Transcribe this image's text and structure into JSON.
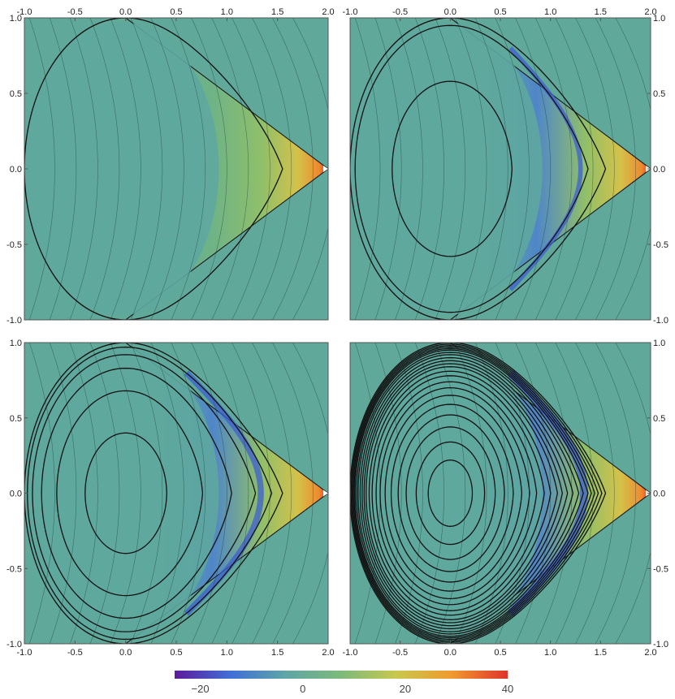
{
  "chart_data": [
    {
      "type": "contour",
      "panel": "top-left",
      "x_ticks": [
        "-1.0",
        "-0.5",
        "0.0",
        "0.5",
        "1.0",
        "1.5",
        "2.0"
      ],
      "y_ticks": [
        "1.0",
        "0.5",
        "0.0",
        "-0.5",
        "-1.0"
      ],
      "xlim": [
        -1.0,
        2.0
      ],
      "ylim": [
        -1.0,
        1.0
      ],
      "x_tick_side": "top",
      "y_tick_side": "left",
      "flux_surface_radii": [
        1.0
      ],
      "field_intensity": 0.25
    },
    {
      "type": "contour",
      "panel": "top-right",
      "x_ticks": [
        "-1.0",
        "-0.5",
        "0.0",
        "0.5",
        "1.0",
        "1.5",
        "2.0"
      ],
      "y_ticks": [
        "1.0",
        "0.5",
        "0.0",
        "-0.5",
        "-1.0"
      ],
      "xlim": [
        -1.0,
        2.0
      ],
      "ylim": [
        -1.0,
        1.0
      ],
      "x_tick_side": "top",
      "y_tick_side": "right",
      "flux_surface_radii": [
        0.58,
        0.95,
        1.0
      ],
      "field_intensity": 0.55
    },
    {
      "type": "contour",
      "panel": "bottom-left",
      "x_ticks": [
        "-1.0",
        "-0.5",
        "0.0",
        "0.5",
        "1.0",
        "1.5",
        "2.0"
      ],
      "y_ticks": [
        "1.0",
        "0.5",
        "0.0",
        "-0.5",
        "-1.0"
      ],
      "xlim": [
        -1.0,
        2.0
      ],
      "ylim": [
        -1.0,
        1.0
      ],
      "x_tick_side": "bottom",
      "y_tick_side": "left",
      "flux_surface_radii": [
        0.4,
        0.68,
        0.83,
        0.92,
        0.97,
        1.0
      ],
      "field_intensity": 0.75
    },
    {
      "type": "contour",
      "panel": "bottom-right",
      "x_ticks": [
        "-1.0",
        "-0.5",
        "0.0",
        "0.5",
        "1.0",
        "1.5",
        "2.0"
      ],
      "y_ticks": [
        "1.0",
        "0.5",
        "0.0",
        "-0.5",
        "-1.0"
      ],
      "xlim": [
        -1.0,
        2.0
      ],
      "ylim": [
        -1.0,
        1.0
      ],
      "x_tick_side": "bottom",
      "y_tick_side": "right",
      "flux_surface_radii": [
        0.22,
        0.34,
        0.44,
        0.52,
        0.59,
        0.65,
        0.7,
        0.74,
        0.78,
        0.81,
        0.84,
        0.86,
        0.88,
        0.9,
        0.92,
        0.935,
        0.95,
        0.96,
        0.97,
        0.98,
        0.99,
        1.0
      ],
      "field_intensity": 1.0
    }
  ],
  "colorbar": {
    "range": [
      -25,
      40
    ],
    "ticks": [
      {
        "value": -20,
        "label": "−20"
      },
      {
        "value": 0,
        "label": "0"
      },
      {
        "value": 20,
        "label": "20"
      },
      {
        "value": 40,
        "label": "40"
      }
    ],
    "colors": [
      "#5b1a9c",
      "#3f6fd6",
      "#5fa6a6",
      "#7cba7a",
      "#c8c84e",
      "#ef9a2e",
      "#e0332b"
    ]
  },
  "background_color": "#5fa89a"
}
